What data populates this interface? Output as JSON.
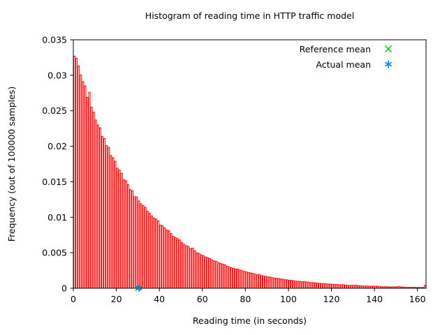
{
  "chart_data": {
    "type": "bar",
    "title": "Histogram of reading time in HTTP traffic model",
    "xlabel": "Reading time (in seconds)",
    "ylabel": "Frequency (out of 100000 samples)",
    "xlim": [
      0,
      164
    ],
    "ylim": [
      0,
      0.035
    ],
    "grid": false,
    "x_ticks": [
      0,
      20,
      40,
      60,
      80,
      100,
      120,
      140,
      160
    ],
    "x_tick_labels": [
      "0",
      "20",
      "40",
      "60",
      "80",
      "100",
      "120",
      "140",
      "160"
    ],
    "y_ticks": [
      0,
      0.005,
      0.01,
      0.015,
      0.02,
      0.025,
      0.03,
      0.035
    ],
    "y_tick_labels": [
      "0",
      "0.005",
      "0.01",
      "0.015",
      "0.02",
      "0.025",
      "0.03",
      "0.035"
    ],
    "bin_width": 1,
    "bar_color": "#ff0000",
    "bar_fill": "#ffffff",
    "axis_color": "#000000",
    "values": [
      0.0327,
      0.0324,
      0.0313,
      0.03005,
      0.0291,
      0.0285,
      0.0269,
      0.0276,
      0.0255,
      0.0248,
      0.0237,
      0.023,
      0.0226,
      0.0214,
      0.0211,
      0.0201,
      0.01985,
      0.0187,
      0.0184,
      0.0179,
      0.0169,
      0.01665,
      0.0162,
      0.0153,
      0.01515,
      0.0146,
      0.0139,
      0.01375,
      0.0129,
      0.01285,
      0.0123,
      0.0119,
      0.01165,
      0.0114,
      0.01085,
      0.0106,
      0.0102,
      0.0099,
      0.00975,
      0.0095,
      0.0089,
      0.0088,
      0.0085,
      0.0082,
      0.0081,
      0.0077,
      0.0073,
      0.00715,
      0.007,
      0.0068,
      0.00645,
      0.0062,
      0.006,
      0.0059,
      0.0056,
      0.00565,
      0.0053,
      0.005,
      0.0049,
      0.0047,
      0.0046,
      0.0044,
      0.0043,
      0.0042,
      0.004,
      0.00385,
      0.0038,
      0.0036,
      0.0035,
      0.0034,
      0.0033,
      0.0031,
      0.003,
      0.0029,
      0.0028,
      0.0027,
      0.00272,
      0.00258,
      0.00248,
      0.00238,
      0.0023,
      0.0022,
      0.00215,
      0.0021,
      0.002,
      0.0019,
      0.00195,
      0.0018,
      0.00172,
      0.00168,
      0.0016,
      0.00158,
      0.0015,
      0.00142,
      0.0014,
      0.00138,
      0.0013,
      0.00128,
      0.0012,
      0.00118,
      0.00112,
      0.0011,
      0.00108,
      0.001,
      0.00098,
      0.00096,
      0.0009,
      0.00095,
      0.00088,
      0.00082,
      0.0008,
      0.00078,
      0.00076,
      0.00072,
      0.0007,
      0.00068,
      0.00066,
      0.00062,
      0.0006,
      0.00058,
      0.00056,
      0.00055,
      0.00052,
      0.0005,
      0.00048,
      0.0005,
      0.00046,
      0.00042,
      0.0004,
      0.00042,
      0.0004,
      0.00044,
      0.00038,
      0.00036,
      0.00032,
      0.0003,
      0.00032,
      0.0003,
      0.00028,
      0.0003,
      0.00028,
      0.0003,
      0.00022,
      0.00022,
      0.0002,
      0.00022,
      0.0002,
      0.00018,
      0.0002,
      0.00018,
      0.0002,
      0.00022,
      0.00018,
      0.00016,
      0.00014,
      0.00012,
      0.00014,
      0.00012,
      0.00014,
      0.0001,
      0.00012,
      0.0001,
      0.00012,
      0.0004
    ],
    "markers": [
      {
        "name": "Reference mean",
        "x": 30,
        "y": 0,
        "type": "cross",
        "color": "#00c000"
      },
      {
        "name": "Actual mean",
        "x": 30.5,
        "y": 0,
        "type": "asterisk",
        "color": "#0080ff"
      }
    ],
    "legend": {
      "position": "top-right",
      "entries": [
        {
          "label": "Reference mean",
          "marker": "cross",
          "color": "#00c000"
        },
        {
          "label": "Actual mean",
          "marker": "asterisk",
          "color": "#0080ff"
        }
      ]
    }
  }
}
